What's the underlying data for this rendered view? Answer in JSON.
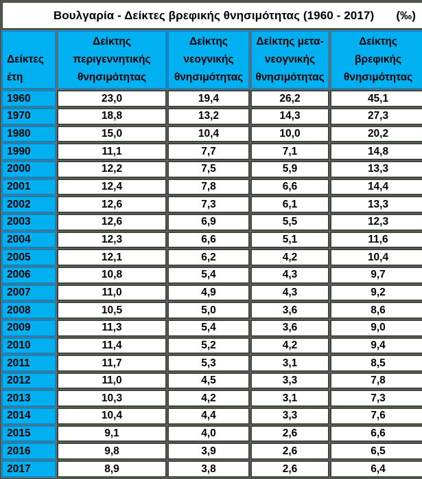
{
  "title": {
    "text": "Βουλγαρία - Δείκτες βρεφικής θνησιμότητας (1960 - 2017)",
    "unit": "(‰)"
  },
  "chart_data": {
    "type": "table",
    "title": "Βουλγαρία - Δείκτες βρεφικής θνησιμότητας (1960 - 2017)",
    "unit": "‰",
    "columns": [
      "Δείκτες\nέτη",
      "Δείκτης\nπεριγεννητικής\nθνησιμότητας",
      "Δείκτης\nνεογνικής\nθνησιμότητας",
      "Δείκτης μετα-\nνεογνικής\nθνησιμότητας",
      "Δείκτης\nβρεφικής\nθνησιμότητας"
    ],
    "rows": [
      {
        "year": "1960",
        "values": [
          "23,0",
          "19,4",
          "26,2",
          "45,1"
        ]
      },
      {
        "year": "1970",
        "values": [
          "18,8",
          "13,2",
          "14,3",
          "27,3"
        ]
      },
      {
        "year": "1980",
        "values": [
          "15,0",
          "10,4",
          "10,0",
          "20,2"
        ]
      },
      {
        "year": "1990",
        "values": [
          "11,1",
          "7,7",
          "7,1",
          "14,8"
        ]
      },
      {
        "year": "2000",
        "values": [
          "12,2",
          "7,5",
          "5,9",
          "13,3"
        ]
      },
      {
        "year": "2001",
        "values": [
          "12,4",
          "7,8",
          "6,6",
          "14,4"
        ]
      },
      {
        "year": "2002",
        "values": [
          "12,6",
          "7,3",
          "6,1",
          "13,3"
        ]
      },
      {
        "year": "2003",
        "values": [
          "12,6",
          "6,9",
          "5,5",
          "12,3"
        ]
      },
      {
        "year": "2004",
        "values": [
          "12,3",
          "6,6",
          "5,1",
          "11,6"
        ]
      },
      {
        "year": "2005",
        "values": [
          "12,1",
          "6,2",
          "4,2",
          "10,4"
        ]
      },
      {
        "year": "2006",
        "values": [
          "10,8",
          "5,4",
          "4,3",
          "9,7"
        ]
      },
      {
        "year": "2007",
        "values": [
          "11,0",
          "4,9",
          "4,3",
          "9,2"
        ]
      },
      {
        "year": "2008",
        "values": [
          "10,5",
          "5,0",
          "3,6",
          "8,6"
        ]
      },
      {
        "year": "2009",
        "values": [
          "11,3",
          "5,4",
          "3,6",
          "9,0"
        ]
      },
      {
        "year": "2010",
        "values": [
          "11,4",
          "5,2",
          "4,2",
          "9,4"
        ]
      },
      {
        "year": "2011",
        "values": [
          "11,7",
          "5,3",
          "3,1",
          "8,5"
        ]
      },
      {
        "year": "2012",
        "values": [
          "11,0",
          "4,5",
          "3,3",
          "7,8"
        ]
      },
      {
        "year": "2013",
        "values": [
          "10,3",
          "4,2",
          "3,1",
          "7,3"
        ]
      },
      {
        "year": "2014",
        "values": [
          "10,4",
          "4,4",
          "3,3",
          "7,6"
        ]
      },
      {
        "year": "2015",
        "values": [
          "9,1",
          "4,0",
          "2,6",
          "6,6"
        ]
      },
      {
        "year": "2016",
        "values": [
          "9,8",
          "3,9",
          "2,6",
          "6,5"
        ]
      },
      {
        "year": "2017",
        "values": [
          "8,9",
          "3,8",
          "2,6",
          "6,4"
        ]
      }
    ]
  },
  "colors": {
    "accent_cyan": "#00b0f0",
    "cyan_border": "#1583c2",
    "chrome_dark": "#3d443b",
    "chrome_seam": "#6a7161",
    "cell_background": "#ffffff",
    "text": "#000000"
  }
}
